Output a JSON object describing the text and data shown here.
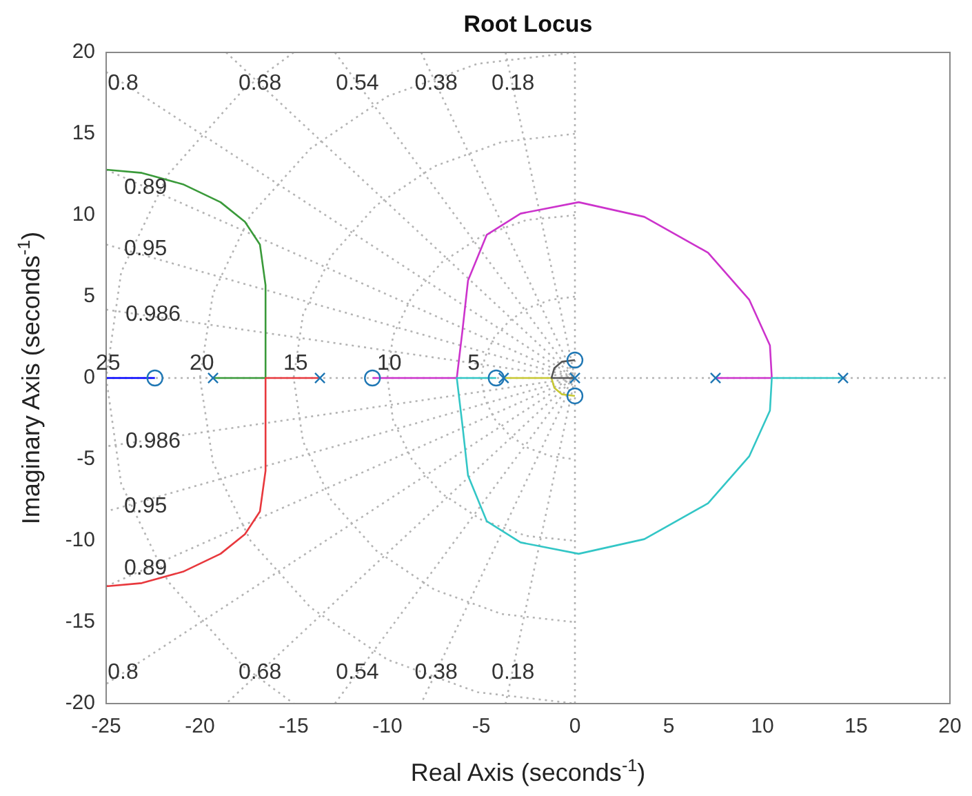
{
  "chart_data": {
    "type": "line",
    "title": "Root Locus",
    "xlabel": "Real Axis (seconds$^{-1}$)",
    "ylabel": "Imaginary Axis (seconds$^{-1}$)",
    "xlim": [
      -25,
      20
    ],
    "ylim": [
      -20,
      20
    ],
    "xticks": [
      -25,
      -20,
      -15,
      -10,
      -5,
      0,
      5,
      10,
      15,
      20
    ],
    "yticks": [
      -20,
      -15,
      -10,
      -5,
      0,
      5,
      10,
      15,
      20
    ],
    "grid": false,
    "legend": false,
    "marker": "none",
    "line_style": "solid",
    "series": [
      {
        "color": "#b4b4b4",
        "line_style": "dotted",
        "x": [
          -25,
          20
        ],
        "values": [
          0,
          0
        ]
      },
      {
        "color": "#b4b4b4",
        "line_style": "dotted",
        "x": [
          0,
          0
        ],
        "values": [
          -20,
          20
        ]
      },
      {
        "color": "#b4b4b4",
        "line_style": "dotted",
        "x": [
          0,
          -1.3,
          -2.5,
          -3.5,
          -4.3,
          -4.8,
          -5,
          -4.8,
          -4.3,
          -3.5,
          -2.5,
          -1.3,
          0
        ],
        "values": [
          5,
          4.8,
          4.3,
          3.5,
          2.5,
          1.3,
          0,
          -1.3,
          -2.5,
          -3.5,
          -4.3,
          -4.8,
          -5
        ]
      },
      {
        "color": "#b4b4b4",
        "line_style": "dotted",
        "x": [
          0,
          -2.6,
          -5,
          -7.1,
          -8.7,
          -9.7,
          -10,
          -9.7,
          -8.7,
          -7.1,
          -5,
          -2.6,
          0
        ],
        "values": [
          10,
          9.7,
          8.7,
          7.1,
          5,
          2.6,
          0,
          -2.6,
          -5,
          -7.1,
          -8.7,
          -9.7,
          -10
        ]
      },
      {
        "color": "#b4b4b4",
        "line_style": "dotted",
        "x": [
          0,
          -3.9,
          -7.5,
          -10.6,
          -13,
          -14.5,
          -15,
          -14.5,
          -13,
          -10.6,
          -7.5,
          -3.9,
          0
        ],
        "values": [
          15,
          14.5,
          13,
          10.6,
          7.5,
          3.9,
          0,
          -3.9,
          -7.5,
          -10.6,
          -13,
          -14.5,
          -15
        ]
      },
      {
        "color": "#b4b4b4",
        "line_style": "dotted",
        "x": [
          0,
          -5.2,
          -10,
          -14.1,
          -17.3,
          -19.3,
          -20,
          -19.3,
          -17.3,
          -14.1,
          -10,
          -5.2,
          0
        ],
        "values": [
          20,
          19.3,
          17.3,
          14.1,
          10,
          5.2,
          0,
          -5.2,
          -10,
          -14.1,
          -17.3,
          -19.3,
          -20
        ]
      },
      {
        "color": "#b4b4b4",
        "line_style": "dotted",
        "x": [
          -15,
          -17.7,
          -21.7,
          -24.2,
          -25,
          -24.2,
          -21.7,
          -17.7,
          -15
        ],
        "values": [
          20,
          17.7,
          12.5,
          6.5,
          0,
          -6.5,
          -12.5,
          -17.7,
          -20
        ]
      },
      {
        "color": "#b4b4b4",
        "line_style": "dotted",
        "x": [
          -3.7,
          0,
          -3.7
        ],
        "values": [
          20,
          0,
          -20
        ]
      },
      {
        "color": "#b4b4b4",
        "line_style": "dotted",
        "x": [
          -8.2,
          0,
          -8.2
        ],
        "values": [
          20,
          0,
          -20
        ]
      },
      {
        "color": "#b4b4b4",
        "line_style": "dotted",
        "x": [
          -12.8,
          0,
          -12.8
        ],
        "values": [
          20,
          0,
          -20
        ]
      },
      {
        "color": "#b4b4b4",
        "line_style": "dotted",
        "x": [
          -18.6,
          0,
          -18.6
        ],
        "values": [
          20,
          0,
          -20
        ]
      },
      {
        "color": "#b4b4b4",
        "line_style": "dotted",
        "x": [
          -25,
          0,
          -25
        ],
        "values": [
          18.8,
          0,
          -18.8
        ]
      },
      {
        "color": "#b4b4b4",
        "line_style": "dotted",
        "x": [
          -25,
          0,
          -25
        ],
        "values": [
          12.8,
          0,
          -12.8
        ]
      },
      {
        "color": "#b4b4b4",
        "line_style": "dotted",
        "x": [
          -25,
          0,
          -25
        ],
        "values": [
          8.2,
          0,
          -8.2
        ]
      },
      {
        "color": "#b4b4b4",
        "line_style": "dotted",
        "x": [
          -25,
          0,
          -25
        ],
        "values": [
          4.2,
          0,
          -4.2
        ]
      },
      {
        "color": "#0000ff",
        "x": [
          -25,
          -22.4
        ],
        "values": [
          0,
          0
        ]
      },
      {
        "color": "#3a9a3a",
        "x": [
          -19.3,
          -16.5,
          -16.5,
          -16.8,
          -17.6,
          -18.9,
          -20.9,
          -23.1,
          -25
        ],
        "values": [
          0,
          0,
          5.7,
          8.2,
          9.6,
          10.8,
          11.9,
          12.6,
          12.8
        ]
      },
      {
        "color": "#e8383d",
        "x": [
          -13.6,
          -16.5,
          -16.5,
          -16.8,
          -17.6,
          -18.9,
          -20.9,
          -23.1,
          -25
        ],
        "values": [
          0,
          0,
          -5.7,
          -8.2,
          -9.6,
          -10.8,
          -11.9,
          -12.6,
          -12.8
        ]
      },
      {
        "color": "#cc33cc",
        "x": [
          7.5,
          10.5,
          10.4,
          9.3,
          7.1,
          3.7,
          0.2,
          -2.9,
          -4.7,
          -5.7,
          -6,
          -6.3,
          -10.8
        ],
        "values": [
          0,
          0,
          2,
          4.8,
          7.7,
          9.9,
          10.8,
          10.1,
          8.8,
          6,
          2.9,
          0,
          0
        ]
      },
      {
        "color": "#33c6c6",
        "x": [
          14.3,
          10.5,
          10.4,
          9.3,
          7.1,
          3.7,
          0.2,
          -2.9,
          -4.7,
          -5.7,
          -6,
          -6.3,
          -4.2
        ],
        "values": [
          0,
          0,
          -2,
          -4.8,
          -7.7,
          -9.9,
          -10.8,
          -10.1,
          -8.8,
          -6,
          -2.9,
          0,
          0
        ]
      },
      {
        "color": "#c8c832",
        "x": [
          -3.8,
          -1.25,
          -1.1,
          -0.7,
          0
        ],
        "values": [
          0,
          0,
          -0.6,
          -1,
          -1.1
        ]
      },
      {
        "color": "#555555",
        "x": [
          0,
          -1.25,
          -1.1,
          -0.7,
          0
        ],
        "values": [
          0,
          0,
          0.6,
          1,
          1.1
        ]
      },
      {
        "type": "scatter",
        "marker": "cross",
        "color": "#1f77b4",
        "x": [
          -19.3,
          -13.6,
          -3.8,
          0,
          7.5,
          14.3
        ],
        "values": [
          0,
          0,
          0,
          0,
          0,
          0
        ]
      },
      {
        "type": "scatter",
        "marker": "circle",
        "color": "#1f77b4",
        "x": [
          -22.4,
          -10.8,
          -4.2,
          0,
          0
        ],
        "values": [
          0,
          0,
          0,
          1.1,
          -1.1
        ]
      }
    ],
    "annotations": [
      {
        "text": "0.8",
        "x": -24.1,
        "y": 18.1
      },
      {
        "text": "0.68",
        "x": -16.8,
        "y": 18.1
      },
      {
        "text": "0.54",
        "x": -11.6,
        "y": 18.1
      },
      {
        "text": "0.38",
        "x": -7.4,
        "y": 18.1
      },
      {
        "text": "0.18",
        "x": -3.3,
        "y": 18.1
      },
      {
        "text": "0.89",
        "x": -22.9,
        "y": 11.7
      },
      {
        "text": "0.95",
        "x": -22.9,
        "y": 7.9
      },
      {
        "text": "0.986",
        "x": -22.5,
        "y": 3.9
      },
      {
        "text": "25",
        "x": -24.9,
        "y": 0.9
      },
      {
        "text": "20",
        "x": -19.9,
        "y": 0.9
      },
      {
        "text": "15",
        "x": -14.9,
        "y": 0.9
      },
      {
        "text": "10",
        "x": -9.9,
        "y": 0.9
      },
      {
        "text": "5",
        "x": -5.4,
        "y": 0.9
      },
      {
        "text": "0.986",
        "x": -22.5,
        "y": -3.9
      },
      {
        "text": "0.95",
        "x": -22.9,
        "y": -7.9
      },
      {
        "text": "0.89",
        "x": -22.9,
        "y": -11.7
      },
      {
        "text": "0.8",
        "x": -24.1,
        "y": -18.1
      },
      {
        "text": "0.68",
        "x": -16.8,
        "y": -18.1
      },
      {
        "text": "0.54",
        "x": -11.6,
        "y": -18.1
      },
      {
        "text": "0.38",
        "x": -7.4,
        "y": -18.1
      },
      {
        "text": "0.18",
        "x": -3.3,
        "y": -18.1
      }
    ]
  }
}
